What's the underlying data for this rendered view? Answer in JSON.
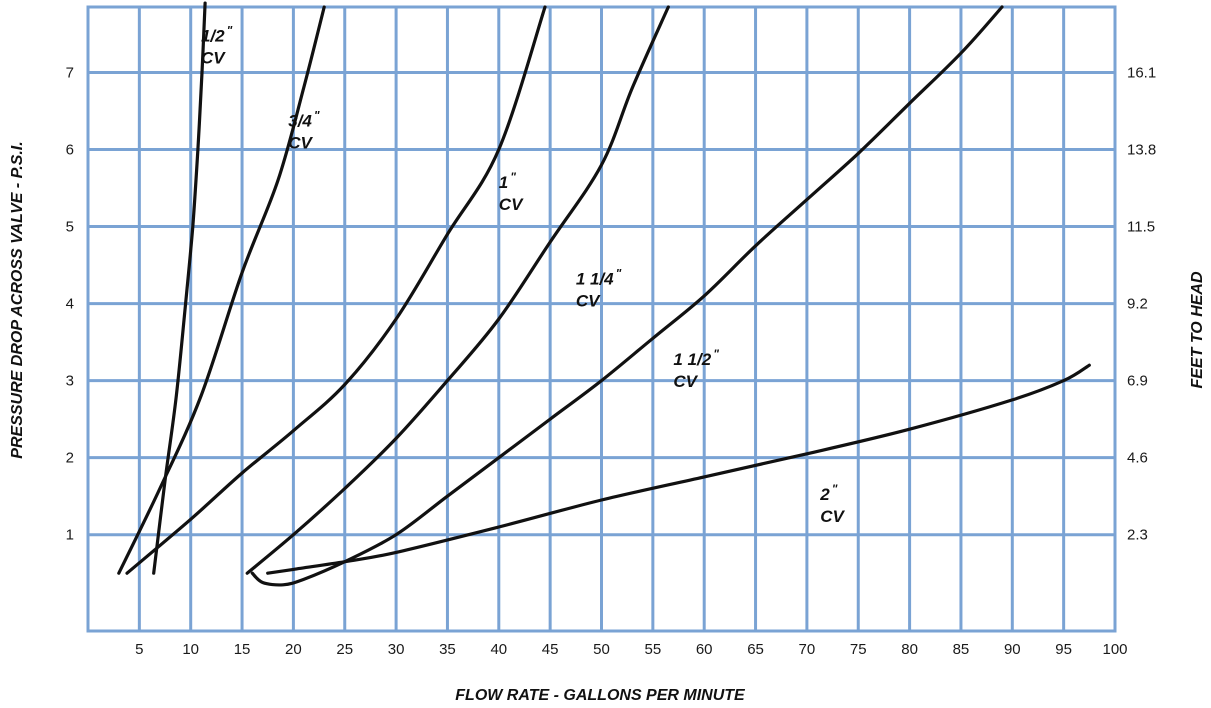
{
  "chart_data": {
    "type": "line",
    "xlabel": "FLOW RATE - GALLONS PER MINUTE",
    "ylabel": "PRESSURE DROP ACROSS VALVE - P.S.I.",
    "y2label": "FEET TO HEAD",
    "xlim": [
      0,
      100
    ],
    "ylim": [
      -0.25,
      7.85
    ],
    "x_ticks": [
      "5",
      "10",
      "15",
      "20",
      "25",
      "30",
      "35",
      "40",
      "45",
      "50",
      "55",
      "60",
      "65",
      "70",
      "75",
      "80",
      "85",
      "90",
      "95",
      "100"
    ],
    "y_ticks": [
      "1",
      "2",
      "3",
      "4",
      "5",
      "6",
      "7"
    ],
    "y2_ticks": [
      "2.3",
      "4.6",
      "6.9",
      "9.2",
      "11.5",
      "13.8",
      "16.1"
    ],
    "grid": true,
    "colors": {
      "grid": "#7aa3d4",
      "curve": "#111111"
    },
    "series": [
      {
        "name": "1/2\" CV",
        "size": "1/2",
        "suffix": "CV",
        "points": [
          [
            6.4,
            0.5
          ],
          [
            7.5,
            1.7
          ],
          [
            8.6,
            2.8
          ],
          [
            9.5,
            4
          ],
          [
            10.2,
            5
          ],
          [
            10.7,
            6
          ],
          [
            11.1,
            7
          ],
          [
            11.4,
            7.9
          ]
        ]
      },
      {
        "name": "3/4\" CV",
        "size": "3/4",
        "suffix": "CV",
        "points": [
          [
            3,
            0.5
          ],
          [
            7,
            1.6
          ],
          [
            11,
            2.8
          ],
          [
            15,
            4.4
          ],
          [
            18.5,
            5.6
          ],
          [
            21,
            6.8
          ],
          [
            23,
            7.85
          ]
        ]
      },
      {
        "name": "1\" CV",
        "size": "1",
        "suffix": "CV",
        "points": [
          [
            3.8,
            0.5
          ],
          [
            10,
            1.2
          ],
          [
            15,
            1.8
          ],
          [
            20,
            2.35
          ],
          [
            25,
            2.95
          ],
          [
            30,
            3.8
          ],
          [
            35,
            4.9
          ],
          [
            40,
            6
          ],
          [
            44.5,
            7.85
          ]
        ]
      },
      {
        "name": "1 1/4\" CV",
        "size": "1 1/4",
        "suffix": "CV",
        "points": [
          [
            15.5,
            0.5
          ],
          [
            20,
            1
          ],
          [
            25,
            1.6
          ],
          [
            30,
            2.25
          ],
          [
            35,
            3
          ],
          [
            40,
            3.8
          ],
          [
            45,
            4.8
          ],
          [
            50,
            5.8
          ],
          [
            53,
            6.8
          ],
          [
            56.5,
            7.85
          ]
        ]
      },
      {
        "name": "1 1/2\" CV",
        "size": "1 1/2",
        "suffix": "CV",
        "points": [
          [
            16,
            0.5
          ],
          [
            17,
            0.38
          ],
          [
            19,
            0.35
          ],
          [
            21,
            0.42
          ],
          [
            25,
            0.65
          ],
          [
            30,
            1
          ],
          [
            35,
            1.5
          ],
          [
            40,
            2
          ],
          [
            45,
            2.5
          ],
          [
            50,
            3
          ],
          [
            55,
            3.55
          ],
          [
            60,
            4.1
          ],
          [
            65,
            4.75
          ],
          [
            70,
            5.35
          ],
          [
            75,
            5.95
          ],
          [
            80,
            6.6
          ],
          [
            85,
            7.25
          ],
          [
            89,
            7.85
          ]
        ]
      },
      {
        "name": "2\" CV",
        "size": "2",
        "suffix": "CV",
        "points": [
          [
            17.5,
            0.5
          ],
          [
            20,
            0.55
          ],
          [
            25,
            0.65
          ],
          [
            30,
            0.77
          ],
          [
            40,
            1.1
          ],
          [
            50,
            1.45
          ],
          [
            60,
            1.75
          ],
          [
            70,
            2.05
          ],
          [
            80,
            2.37
          ],
          [
            90,
            2.75
          ],
          [
            95,
            3
          ],
          [
            97.5,
            3.2
          ]
        ]
      }
    ]
  }
}
